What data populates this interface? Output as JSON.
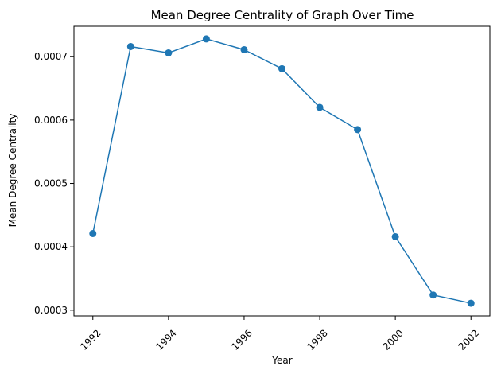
{
  "chart_data": {
    "type": "line",
    "title": "Mean Degree Centrality of Graph Over Time",
    "xlabel": "Year",
    "ylabel": "Mean Degree Centrality",
    "x": [
      1992,
      1993,
      1994,
      1995,
      1996,
      1997,
      1998,
      1999,
      2000,
      2001,
      2002
    ],
    "series": [
      {
        "values": [
          0.000421,
          0.000716,
          0.000706,
          0.000728,
          0.000711,
          0.000681,
          0.00062,
          0.000585,
          0.000416,
          0.000324,
          0.000311
        ]
      }
    ],
    "xlim": [
      1991.5,
      2002.5
    ],
    "ylim": [
      0.000291,
      0.000748
    ],
    "xticks": [
      1992,
      1994,
      1996,
      1998,
      2000,
      2002
    ],
    "xtick_labels": [
      "1992",
      "1994",
      "1996",
      "1998",
      "2000",
      "2002"
    ],
    "xtick_rotation_deg": 45,
    "yticks": [
      0.0003,
      0.0004,
      0.0005,
      0.0006,
      0.0007
    ],
    "ytick_labels": [
      "0.0003",
      "0.0004",
      "0.0005",
      "0.0006",
      "0.0007"
    ],
    "grid": false,
    "legend": "none",
    "colors": {
      "series": "#1f77b4",
      "axes": "#000000",
      "background": "#ffffff"
    },
    "marker": "circle"
  }
}
